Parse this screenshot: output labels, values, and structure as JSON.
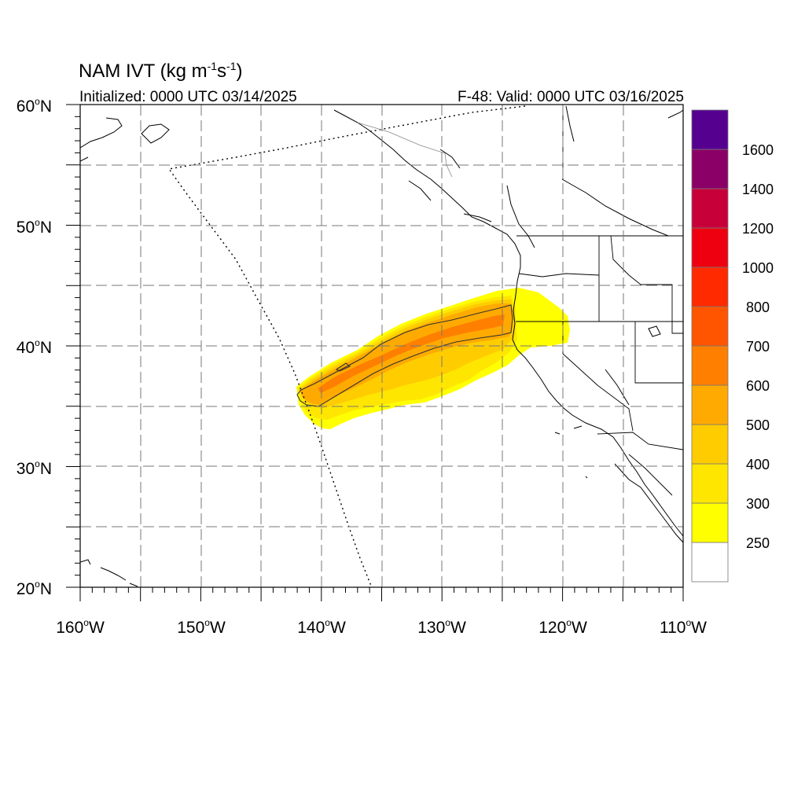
{
  "header": {
    "title_main": "NAM IVT (kg m",
    "title_exp1": "-1",
    "title_mid": "s",
    "title_exp2": "-1",
    "title_close": ")",
    "initialized": "Initialized: 0000 UTC 03/14/2025",
    "valid": "F-48: Valid: 0000 UTC 03/16/2025"
  },
  "map": {
    "lon_range": [
      -160,
      -110
    ],
    "lat_range": [
      20,
      60
    ],
    "lat_labels": [
      {
        "deg": "60",
        "suffix": "N"
      },
      {
        "deg": "50",
        "suffix": "N"
      },
      {
        "deg": "40",
        "suffix": "N"
      },
      {
        "deg": "30",
        "suffix": "N"
      },
      {
        "deg": "20",
        "suffix": "N"
      }
    ],
    "lon_labels": [
      {
        "deg": "160",
        "suffix": "W"
      },
      {
        "deg": "150",
        "suffix": "W"
      },
      {
        "deg": "140",
        "suffix": "W"
      },
      {
        "deg": "130",
        "suffix": "W"
      },
      {
        "deg": "120",
        "suffix": "W"
      },
      {
        "deg": "110",
        "suffix": "W"
      }
    ]
  },
  "colorbar": {
    "levels": [
      "250",
      "300",
      "400",
      "500",
      "600",
      "700",
      "800",
      "1000",
      "1200",
      "1400",
      "1600"
    ],
    "colors": [
      "#ffffff",
      "#ffff00",
      "#ffe600",
      "#ffcc00",
      "#ffaa00",
      "#ff7f00",
      "#ff5500",
      "#ff2a00",
      "#ee0010",
      "#c8003a",
      "#8b0066",
      "#560090"
    ]
  }
}
